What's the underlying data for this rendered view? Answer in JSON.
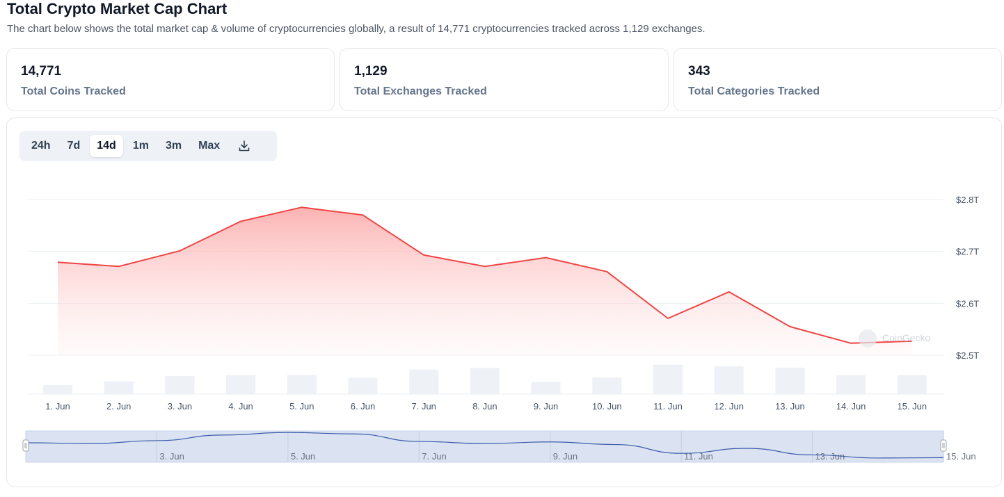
{
  "header": {
    "title": "Total Crypto Market Cap Chart",
    "subtitle": "The chart below shows the total market cap & volume of cryptocurrencies globally, a result of 14,771 cryptocurrencies tracked across 1,129 exchanges."
  },
  "stats": [
    {
      "value": "14,771",
      "label": "Total Coins Tracked"
    },
    {
      "value": "1,129",
      "label": "Total Exchanges Tracked"
    },
    {
      "value": "343",
      "label": "Total Categories Tracked"
    }
  ],
  "range_selector": {
    "options": [
      "24h",
      "7d",
      "14d",
      "1m",
      "3m",
      "Max"
    ],
    "selected": "14d",
    "download_icon": "download-icon"
  },
  "watermark": "CoinGecko",
  "colors": {
    "line": "#ef4444",
    "area_top": "#fecaca",
    "volume_bar": "#eef1f5",
    "navigator_fill": "#dbe3f2",
    "navigator_line": "#3b5bab"
  },
  "chart_data": {
    "type": "line",
    "series": [
      {
        "name": "Market Cap",
        "unit": "T USD",
        "x": [
          "1. Jun",
          "2. Jun",
          "3. Jun",
          "4. Jun",
          "5. Jun",
          "6. Jun",
          "7. Jun",
          "8. Jun",
          "9. Jun",
          "10. Jun",
          "11. Jun",
          "12. Jun",
          "13. Jun",
          "14. Jun",
          "15. Jun"
        ],
        "values": [
          2.679,
          2.671,
          2.701,
          2.758,
          2.785,
          2.77,
          2.693,
          2.671,
          2.688,
          2.661,
          2.571,
          2.622,
          2.555,
          2.523,
          2.527
        ]
      },
      {
        "name": "Volume",
        "type": "bar",
        "relative_values": [
          0.28,
          0.39,
          0.55,
          0.58,
          0.59,
          0.5,
          0.75,
          0.8,
          0.37,
          0.51,
          0.9,
          0.85,
          0.81,
          0.58,
          0.58
        ]
      }
    ],
    "x_tick_labels": [
      "1. Jun",
      "2. Jun",
      "3. Jun",
      "4. Jun",
      "5. Jun",
      "6. Jun",
      "7. Jun",
      "8. Jun",
      "9. Jun",
      "10. Jun",
      "11. Jun",
      "12. Jun",
      "13. Jun",
      "14. Jun",
      "15. Jun"
    ],
    "y_tick_labels": [
      "$2.5T",
      "$2.6T",
      "$2.7T",
      "$2.8T"
    ],
    "y_ticks": [
      2.5,
      2.6,
      2.7,
      2.8
    ],
    "ylim": [
      2.5,
      2.8
    ],
    "navigator_tick_labels": [
      "3. Jun",
      "5. Jun",
      "7. Jun",
      "9. Jun",
      "11. Jun",
      "13. Jun",
      "15. Jun"
    ],
    "navigator_tick_days": [
      3,
      5,
      7,
      9,
      11,
      13,
      15
    ],
    "grid": true,
    "legend": "none"
  }
}
